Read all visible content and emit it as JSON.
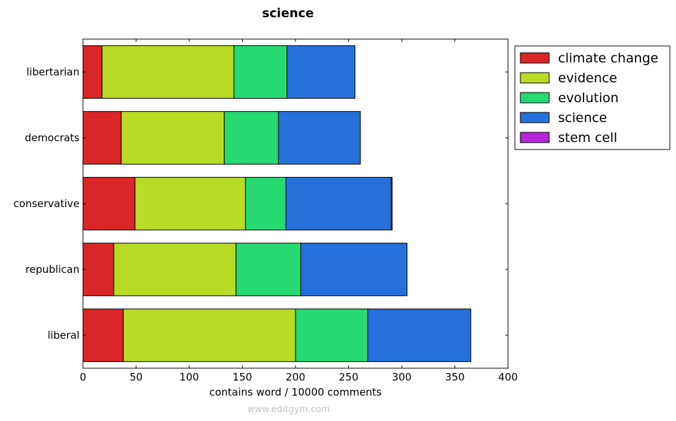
{
  "chart_data": {
    "type": "bar",
    "orientation": "horizontal",
    "stacked": true,
    "title": "science",
    "xlabel": "contains word / 10000 comments",
    "ylabel": "",
    "xlim": [
      0,
      400
    ],
    "xticks": [
      "0",
      "50",
      "100",
      "150",
      "200",
      "250",
      "300",
      "350",
      "400"
    ],
    "categories": [
      "libertarian",
      "democrats",
      "conservative",
      "republican",
      "liberal"
    ],
    "series": [
      {
        "name": "climate change",
        "color": "#d92626",
        "values": [
          18,
          36,
          49,
          29,
          38
        ]
      },
      {
        "name": "evidence",
        "color": "#b8db26",
        "values": [
          124,
          97,
          104,
          115,
          162
        ]
      },
      {
        "name": "evolution",
        "color": "#26d971",
        "values": [
          50,
          51,
          38,
          61,
          68
        ]
      },
      {
        "name": "science",
        "color": "#2670db",
        "values": [
          64,
          77,
          99,
          100,
          97
        ]
      },
      {
        "name": "stem cell",
        "color": "#b726d9",
        "values": [
          0,
          0,
          1,
          0,
          0
        ]
      }
    ],
    "legend_position": "outside-right-top",
    "grid": false
  },
  "watermark": "www.editgym.com"
}
